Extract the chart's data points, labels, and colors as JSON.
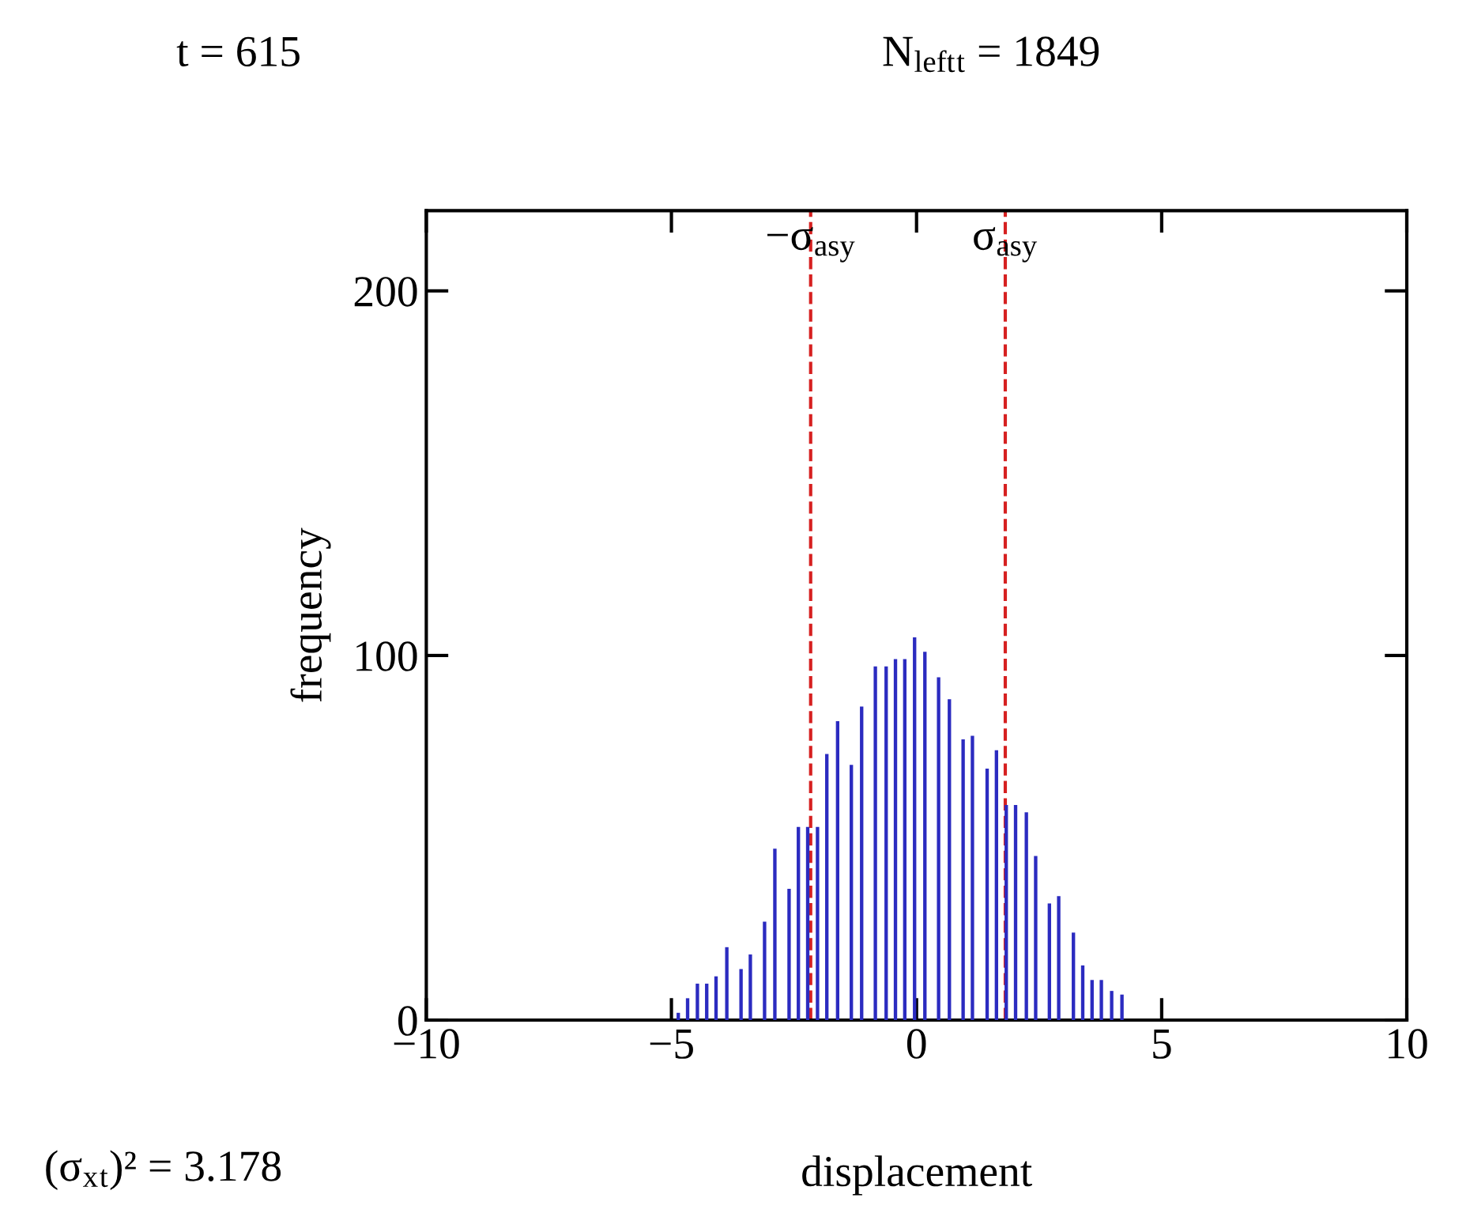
{
  "chart_data": {
    "type": "bar",
    "xlabel": "displacement",
    "ylabel": "frequency",
    "x": [
      -4.86,
      -4.67,
      -4.47,
      -4.28,
      -4.09,
      -3.87,
      -3.58,
      -3.39,
      -3.1,
      -2.89,
      -2.6,
      -2.41,
      -2.22,
      -2.02,
      -1.83,
      -1.61,
      -1.33,
      -1.12,
      -0.84,
      -0.62,
      -0.43,
      -0.24,
      -0.04,
      0.17,
      0.45,
      0.67,
      0.95,
      1.14,
      1.44,
      1.63,
      1.83,
      2.02,
      2.24,
      2.43,
      2.71,
      2.9,
      3.2,
      3.39,
      3.58,
      3.77,
      3.98,
      4.19
    ],
    "values": [
      2,
      6,
      10,
      10,
      12,
      20,
      14,
      18,
      27,
      47,
      36,
      53,
      53,
      53,
      73,
      82,
      70,
      86,
      97,
      97,
      99,
      99,
      105,
      101,
      94,
      88,
      77,
      78,
      69,
      74,
      59,
      59,
      57,
      45,
      32,
      34,
      24,
      15,
      11,
      11,
      8,
      7
    ],
    "color": "#2b2bc0",
    "xlim": [
      -10,
      10
    ],
    "xticks": [
      {
        "value": -10,
        "label": "−10"
      },
      {
        "value": -5,
        "label": "−5"
      },
      0,
      5,
      10
    ],
    "ylim": [
      0,
      222
    ],
    "yticks": [
      0,
      100,
      200
    ],
    "grid": false,
    "ref_lines": [
      {
        "axis": "x",
        "value": -2.16,
        "label": "−σ$_{asy}$",
        "color": "#d62020",
        "line_style": "dashed"
      },
      {
        "axis": "x",
        "value": 1.81,
        "label": "σ$_{asy}$",
        "color": "#d62020",
        "line_style": "dashed"
      }
    ],
    "annotations": [
      "t = 615",
      "N$_{left}$$_{t}$ = 1849",
      "(σ$_{x}$$_{t}$)² = 3.178"
    ]
  }
}
